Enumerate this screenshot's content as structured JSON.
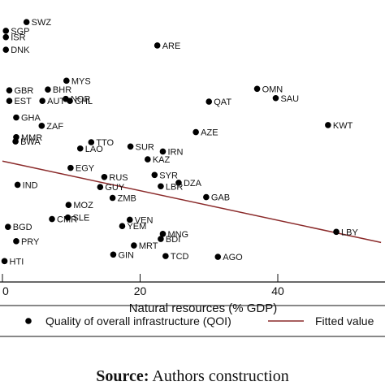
{
  "chart_data": {
    "type": "scatter",
    "xlabel": "Natural resources (% GDP)",
    "ylabel": "",
    "xlim": [
      0,
      55
    ],
    "ylim": [
      0,
      100
    ],
    "x_ticks": [
      0,
      20,
      40
    ],
    "x_tick_labels": [
      "0",
      "20",
      "40"
    ],
    "grid": false,
    "legend": {
      "position": "bottom",
      "entries": [
        {
          "label": "Quality of overall infrastructure (QOI)",
          "marker": "dot"
        },
        {
          "label": "Fitted value",
          "marker": "line"
        }
      ]
    },
    "fitted_line": {
      "x": [
        0,
        55
      ],
      "y": [
        42.5,
        10.2
      ],
      "color": "#8b2b2b"
    },
    "series": [
      {
        "name": "Quality of overall infrastructure (QOI)",
        "points": [
          {
            "label": "SWZ",
            "x": 3.5,
            "y": 97.7
          },
          {
            "label": "SGP",
            "x": 0.5,
            "y": 94.2
          },
          {
            "label": "ISR",
            "x": 0.5,
            "y": 91.7
          },
          {
            "label": "ARE",
            "x": 22.5,
            "y": 88.4
          },
          {
            "label": "DNK",
            "x": 0.5,
            "y": 86.7
          },
          {
            "label": "MYS",
            "x": 9.3,
            "y": 74.4
          },
          {
            "label": "OMN",
            "x": 37.0,
            "y": 71.2
          },
          {
            "label": "BHR",
            "x": 6.6,
            "y": 70.9
          },
          {
            "label": "GBR",
            "x": 1.0,
            "y": 70.6
          },
          {
            "label": "SAU",
            "x": 39.7,
            "y": 67.5
          },
          {
            "label": "NOR",
            "x": 9.2,
            "y": 67.2
          },
          {
            "label": "EST",
            "x": 1.0,
            "y": 66.4
          },
          {
            "label": "AUT",
            "x": 5.8,
            "y": 66.4
          },
          {
            "label": "CHL",
            "x": 9.8,
            "y": 66.4
          },
          {
            "label": "QAT",
            "x": 30.0,
            "y": 66.1
          },
          {
            "label": "KWT",
            "x": 47.3,
            "y": 56.8
          },
          {
            "label": "AZE",
            "x": 28.1,
            "y": 54.0
          },
          {
            "label": "TTO",
            "x": 12.9,
            "y": 50.0
          },
          {
            "label": "SUR",
            "x": 18.6,
            "y": 48.3
          },
          {
            "label": "LAO",
            "x": 11.3,
            "y": 47.5
          },
          {
            "label": "IRN",
            "x": 23.3,
            "y": 46.3
          },
          {
            "label": "KAZ",
            "x": 21.1,
            "y": 43.2
          },
          {
            "label": "EGY",
            "x": 9.9,
            "y": 39.8
          },
          {
            "label": "SYR",
            "x": 22.1,
            "y": 37.0
          },
          {
            "label": "RUS",
            "x": 14.8,
            "y": 36.2
          },
          {
            "label": "DZA",
            "x": 25.6,
            "y": 33.9
          },
          {
            "label": "GUY",
            "x": 14.2,
            "y": 32.2
          },
          {
            "label": "LBR",
            "x": 23.0,
            "y": 32.5
          },
          {
            "label": "ZMB",
            "x": 16.0,
            "y": 27.9
          },
          {
            "label": "GAB",
            "x": 29.6,
            "y": 28.2
          },
          {
            "label": "VEN",
            "x": 18.5,
            "y": 19.2
          },
          {
            "label": "YEM",
            "x": 17.4,
            "y": 16.7
          },
          {
            "label": "MNG",
            "x": 23.3,
            "y": 13.6
          },
          {
            "label": "LBY",
            "x": 48.5,
            "y": 14.4
          },
          {
            "label": "BDI",
            "x": 23.0,
            "y": 11.6
          },
          {
            "label": "MRT",
            "x": 19.1,
            "y": 9.0
          },
          {
            "label": "GIN",
            "x": 16.1,
            "y": 5.4
          },
          {
            "label": "TCD",
            "x": 23.7,
            "y": 4.8
          },
          {
            "label": "AGO",
            "x": 31.3,
            "y": 4.5
          },
          {
            "label": "HTI",
            "x": 0.3,
            "y": 2.8
          },
          {
            "label": "PRY",
            "x": 2.0,
            "y": 10.7
          },
          {
            "label": "BGD",
            "x": 0.8,
            "y": 16.4
          },
          {
            "label": "CMR",
            "x": 7.2,
            "y": 19.5
          },
          {
            "label": "SLE",
            "x": 9.5,
            "y": 20.1
          },
          {
            "label": "MOZ",
            "x": 9.6,
            "y": 25.1
          },
          {
            "label": "IND",
            "x": 2.2,
            "y": 33.1
          },
          {
            "label": "BWA",
            "x": 1.9,
            "y": 50.3
          },
          {
            "label": "ZAF",
            "x": 5.7,
            "y": 56.5
          },
          {
            "label": "GHA",
            "x": 2.0,
            "y": 59.8
          },
          {
            "label": "MMR",
            "x": 2.0,
            "y": 52.0
          }
        ]
      }
    ],
    "dense_cluster_note": null
  }
}
